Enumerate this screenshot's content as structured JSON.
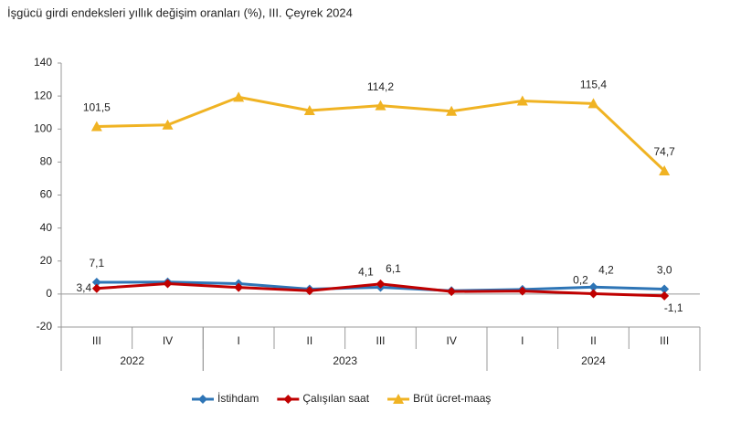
{
  "chart_data": {
    "type": "line",
    "title": "İşgücü girdi endeksleri yıllık değişim oranları (%), III. Çeyrek 2024",
    "categories": [
      "III",
      "IV",
      "I",
      "II",
      "III",
      "IV",
      "I",
      "II",
      "III"
    ],
    "category_groups": [
      {
        "label": "2022",
        "count": 2
      },
      {
        "label": "2023",
        "count": 4
      },
      {
        "label": "2024",
        "count": 3
      }
    ],
    "series": [
      {
        "name": "İstihdam",
        "color": "#2e75b6",
        "marker": "diamond",
        "values": [
          7.1,
          7.3,
          6.3,
          3.0,
          4.1,
          2.0,
          2.8,
          4.2,
          3.0
        ],
        "value_labels": [
          "7,1",
          null,
          null,
          null,
          "4,1",
          null,
          null,
          "4,2",
          "3,0"
        ]
      },
      {
        "name": "Çalışılan saat",
        "color": "#c00000",
        "marker": "diamond",
        "values": [
          3.4,
          6.3,
          4.0,
          2.0,
          6.1,
          1.5,
          1.8,
          0.2,
          -1.1
        ],
        "value_labels": [
          "3,4",
          null,
          null,
          null,
          "6,1",
          null,
          null,
          "0,2",
          "-1,1"
        ]
      },
      {
        "name": "Brüt ücret-maaş",
        "color": "#f0b323",
        "marker": "triangle",
        "values": [
          101.5,
          102.5,
          119.3,
          111.2,
          114.2,
          110.8,
          117.0,
          115.4,
          74.7
        ],
        "value_labels": [
          "101,5",
          null,
          null,
          null,
          "114,2",
          null,
          null,
          "115,4",
          "74,7"
        ]
      }
    ],
    "ylim": [
      -20,
      140
    ],
    "yticks": [
      -20,
      0,
      20,
      40,
      60,
      80,
      100,
      120,
      140
    ]
  }
}
